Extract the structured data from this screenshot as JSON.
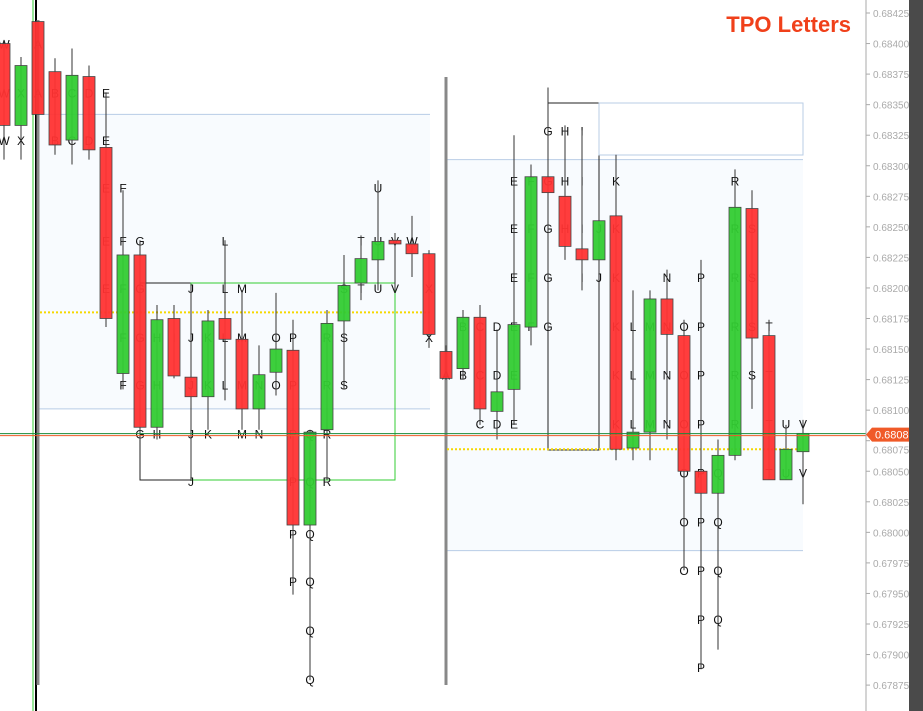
{
  "chart_data": {
    "type": "candlestick-tpo",
    "title": "TPO Letters",
    "ylim": [
      0.67865,
      0.6843
    ],
    "y_ticks": [
      "0.68425",
      "0.68400",
      "0.68375",
      "0.68350",
      "0.68325",
      "0.68300",
      "0.68275",
      "0.68250",
      "0.68225",
      "0.68200",
      "0.68175",
      "0.68150",
      "0.68125",
      "0.68100",
      "0.68075",
      "0.68050",
      "0.68025",
      "0.68000",
      "0.67975",
      "0.67950",
      "0.67925",
      "0.67900",
      "0.67875"
    ],
    "last_price": "0.68080",
    "colors": {
      "up": "#33cc33",
      "down": "#ff3333",
      "poc": "#f5d800",
      "value_area": "#b9cde6",
      "last_price": "#f05a28"
    },
    "sessions": [
      {
        "rows": [
          0.684,
          0.6836,
          0.68321,
          0.68282,
          0.68239,
          0.682,
          0.6816,
          0.68121,
          0.68081,
          0.68042,
          0.67999,
          0.6796,
          0.6792,
          0.6788
        ],
        "poc": 0.6818,
        "vah": 0.68342,
        "val": 0.68101,
        "candles": [
          [
            "W",
            0.684,
            0.68403,
            0.68305,
            0.68333
          ],
          [
            "X",
            0.68333,
            0.68389,
            0.68305,
            0.68382
          ],
          [
            "A",
            0.68418,
            0.68418,
            0.68342,
            0.68342
          ],
          [
            "B",
            0.68377,
            0.68388,
            0.68309,
            0.68317
          ],
          [
            "C",
            0.68321,
            0.68396,
            0.68301,
            0.68374
          ],
          [
            "D",
            0.68373,
            0.68382,
            0.68305,
            0.68313
          ],
          [
            "E",
            0.68315,
            0.6836,
            0.68168,
            0.68175
          ],
          [
            "F",
            0.6813,
            0.6828,
            0.68117,
            0.68227
          ],
          [
            "G",
            0.68227,
            0.68239,
            0.68076,
            0.68086
          ],
          [
            "H",
            0.68086,
            0.68186,
            0.68076,
            0.68174
          ],
          [
            "I",
            0.68175,
            0.68186,
            0.68126,
            0.68128
          ],
          [
            "J",
            0.68127,
            0.68202,
            0.68042,
            0.68111
          ],
          [
            "K",
            0.68111,
            0.68182,
            0.68084,
            0.68173
          ],
          [
            "L",
            0.68175,
            0.68239,
            0.68108,
            0.68158
          ],
          [
            "M",
            0.68158,
            0.68198,
            0.68084,
            0.68101
          ],
          [
            "N",
            0.68101,
            0.68153,
            0.68084,
            0.68129
          ],
          [
            "O",
            0.68131,
            0.68196,
            0.68112,
            0.6815
          ],
          [
            "P",
            0.68149,
            0.68174,
            0.67949,
            0.68006
          ],
          [
            "Q",
            0.68006,
            0.68084,
            0.67879,
            0.68082
          ],
          [
            "R",
            0.68084,
            0.68182,
            0.68043,
            0.68171
          ],
          [
            "S",
            0.68173,
            0.68227,
            0.68117,
            0.68202
          ],
          [
            "T",
            0.68204,
            0.68243,
            0.6819,
            0.68224
          ],
          [
            "U",
            0.68223,
            0.68288,
            0.68198,
            0.68238
          ],
          [
            "V",
            0.68239,
            0.68245,
            0.68198,
            0.68236
          ],
          [
            "W",
            0.68236,
            0.68259,
            0.68209,
            0.68228
          ],
          [
            "X",
            0.68228,
            0.68231,
            0.68151,
            0.68162
          ]
        ]
      },
      {
        "rows": [
          0.68369,
          0.68329,
          0.68288,
          0.68249,
          0.68209,
          0.68169,
          0.68129,
          0.68089,
          0.68049,
          0.68009,
          0.67969,
          0.67929,
          0.6789
        ],
        "poc": 0.68068,
        "vah": 0.68305,
        "val": 0.67985,
        "candles": [
          [
            "A",
            0.68148,
            0.68153,
            0.68125,
            0.68126
          ],
          [
            "B",
            0.68134,
            0.68182,
            0.68125,
            0.68176
          ],
          [
            "C",
            0.68176,
            0.68186,
            0.68088,
            0.68101
          ],
          [
            "D",
            0.68099,
            0.68166,
            0.68076,
            0.68115
          ],
          [
            "E",
            0.68117,
            0.68325,
            0.68088,
            0.6817
          ],
          [
            "F",
            0.68168,
            0.68301,
            0.68153,
            0.68291
          ],
          [
            "G",
            0.68291,
            0.68364,
            0.68166,
            0.68278
          ],
          [
            "H",
            0.68275,
            0.68333,
            0.68223,
            0.68234
          ],
          [
            "I",
            0.68232,
            0.68329,
            0.68198,
            0.68223
          ],
          [
            "J",
            0.68223,
            0.68272,
            0.68211,
            0.68255
          ],
          [
            "K",
            0.68259,
            0.68309,
            0.68059,
            0.68068
          ],
          [
            "L",
            0.68069,
            0.68198,
            0.68059,
            0.68082
          ],
          [
            "M",
            0.68082,
            0.68198,
            0.68059,
            0.68191
          ],
          [
            "N",
            0.68191,
            0.68215,
            0.68076,
            0.68162
          ],
          [
            "O",
            0.68161,
            0.68174,
            0.67969,
            0.6805
          ],
          [
            "P",
            0.6805,
            0.68223,
            0.67888,
            0.68032
          ],
          [
            "Q",
            0.68032,
            0.68076,
            0.67904,
            0.68063
          ],
          [
            "R",
            0.68063,
            0.68297,
            0.68059,
            0.68266
          ],
          [
            "S",
            0.68265,
            0.6828,
            0.68101,
            0.68159
          ],
          [
            "T",
            0.68161,
            0.68174,
            0.68043,
            0.68043
          ],
          [
            "U",
            0.68043,
            0.68088,
            0.68043,
            0.68068
          ],
          [
            "V",
            0.68066,
            0.68092,
            0.68023,
            0.68081
          ]
        ]
      }
    ]
  }
}
